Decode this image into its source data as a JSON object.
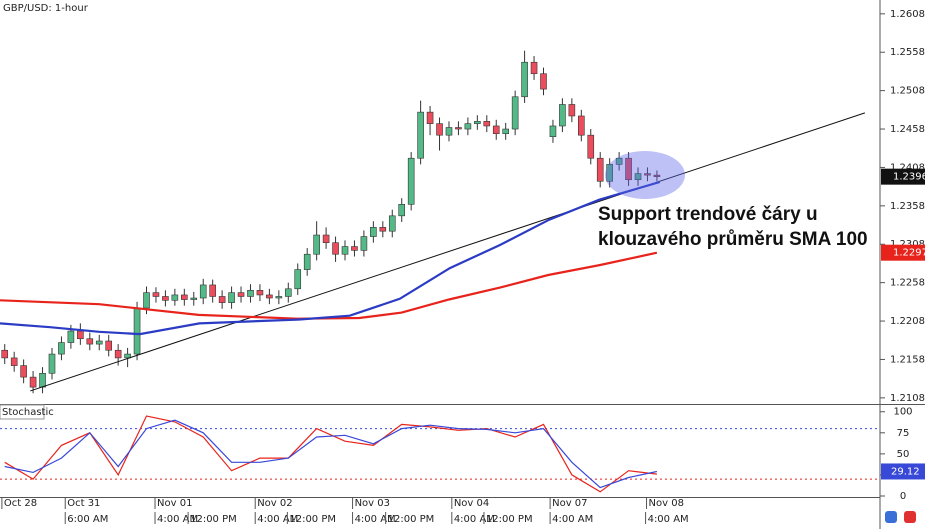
{
  "chart_data": [
    {
      "type": "candlestick",
      "title": "GBP/USD: 1-hour",
      "up_color": "#53b987",
      "down_color": "#eb4d5c",
      "open": [
        1.217,
        1.216,
        1.215,
        1.2135,
        1.2122,
        1.214,
        1.2165,
        1.218,
        1.2195,
        1.2185,
        1.2178,
        1.2182,
        1.217,
        1.216,
        1.2165,
        1.2225,
        1.2245,
        1.224,
        1.2235,
        1.2242,
        1.2236,
        1.2238,
        1.2255,
        1.224,
        1.2232,
        1.2245,
        1.224,
        1.2248,
        1.2242,
        1.2238,
        1.224,
        1.225,
        1.2275,
        1.2295,
        1.232,
        1.231,
        1.2295,
        1.2305,
        1.23,
        1.2318,
        1.233,
        1.2325,
        1.2345,
        1.236,
        1.242,
        1.248,
        1.2465,
        1.245,
        1.246,
        1.2458,
        1.2465,
        1.2468,
        1.2462,
        1.2452,
        1.2458,
        1.25,
        1.2545,
        1.253,
        1.2448,
        1.2462,
        1.249,
        1.2475,
        1.245,
        1.242,
        1.239,
        1.2412,
        1.242,
        1.2392,
        1.24,
        1.2398
      ],
      "high": [
        1.2178,
        1.2168,
        1.2158,
        1.2143,
        1.2148,
        1.2173,
        1.2188,
        1.2203,
        1.2205,
        1.2193,
        1.219,
        1.219,
        1.2178,
        1.2173,
        1.2233,
        1.2253,
        1.2252,
        1.2248,
        1.225,
        1.225,
        1.2246,
        1.2263,
        1.2262,
        1.2248,
        1.2253,
        1.2253,
        1.2256,
        1.2256,
        1.225,
        1.2248,
        1.2258,
        1.2283,
        1.2303,
        1.2338,
        1.233,
        1.2318,
        1.2313,
        1.2313,
        1.2326,
        1.2338,
        1.2338,
        1.2353,
        1.2368,
        1.2428,
        1.2495,
        1.2488,
        1.2473,
        1.2468,
        1.2468,
        1.2473,
        1.2476,
        1.2476,
        1.247,
        1.2466,
        1.2508,
        1.256,
        1.2553,
        1.2538,
        1.247,
        1.2498,
        1.2498,
        1.2483,
        1.2458,
        1.2428,
        1.242,
        1.2428,
        1.2428,
        1.2408,
        1.2408,
        1.2404
      ],
      "low": [
        1.2152,
        1.2142,
        1.2127,
        1.2114,
        1.2114,
        1.2132,
        1.2157,
        1.2172,
        1.2177,
        1.217,
        1.217,
        1.2162,
        1.215,
        1.2148,
        1.2157,
        1.2217,
        1.2232,
        1.2227,
        1.2228,
        1.2228,
        1.2228,
        1.223,
        1.2232,
        1.2224,
        1.2224,
        1.2232,
        1.2232,
        1.2234,
        1.223,
        1.223,
        1.2232,
        1.2242,
        1.2267,
        1.2287,
        1.2302,
        1.2285,
        1.2287,
        1.2292,
        1.2292,
        1.231,
        1.2317,
        1.2317,
        1.2337,
        1.2352,
        1.2412,
        1.245,
        1.243,
        1.2442,
        1.245,
        1.245,
        1.2457,
        1.2454,
        1.2444,
        1.2444,
        1.245,
        1.2492,
        1.2522,
        1.2502,
        1.244,
        1.2454,
        1.2467,
        1.2442,
        1.2412,
        1.2382,
        1.2382,
        1.2404,
        1.2384,
        1.2384,
        1.239,
        1.239
      ],
      "close": [
        1.216,
        1.215,
        1.2135,
        1.2122,
        1.214,
        1.2165,
        1.218,
        1.2195,
        1.2185,
        1.2178,
        1.2182,
        1.217,
        1.216,
        1.2165,
        1.2225,
        1.2245,
        1.224,
        1.2235,
        1.2242,
        1.2236,
        1.2238,
        1.2255,
        1.224,
        1.2232,
        1.2245,
        1.224,
        1.2248,
        1.2242,
        1.2238,
        1.224,
        1.225,
        1.2275,
        1.2295,
        1.232,
        1.231,
        1.2295,
        1.2305,
        1.23,
        1.2318,
        1.233,
        1.2325,
        1.2345,
        1.236,
        1.242,
        1.248,
        1.2465,
        1.245,
        1.246,
        1.2458,
        1.2465,
        1.2468,
        1.2462,
        1.2452,
        1.2458,
        1.25,
        1.2545,
        1.253,
        1.251,
        1.2462,
        1.249,
        1.2475,
        1.245,
        1.242,
        1.239,
        1.2412,
        1.242,
        1.2392,
        1.24,
        1.2398,
        1.2396
      ],
      "series": [
        {
          "color": "#e8231b",
          "x": [
            -0.5,
            10,
            20.5,
            31,
            37.5,
            42,
            47,
            52.5,
            57.5,
            63,
            69
          ],
          "values": [
            1.2235,
            1.223,
            1.2216,
            1.2211,
            1.2212,
            1.2219,
            1.2236,
            1.2252,
            1.2268,
            1.2281,
            1.2297
          ]
        },
        {
          "color": "#2b3bc4",
          "x": [
            -0.5,
            4.8,
            10,
            14.3,
            20.6,
            31.2,
            36.5,
            41.8,
            47.1,
            52.4,
            57.6,
            62.9,
            69.3
          ],
          "values": [
            1.2205,
            1.22,
            1.2194,
            1.2191,
            1.2205,
            1.221,
            1.2215,
            1.2237,
            1.2277,
            1.2307,
            1.234,
            1.2366,
            1.2389
          ]
        }
      ],
      "trendline": {
        "x": [
          2.7,
          91
        ],
        "y": [
          1.2117,
          1.2479
        ]
      },
      "annotation": [
        "Support trendové čáry u",
        "klouzavého průměru SMA 100"
      ],
      "xlim": [
        -0.5,
        92.6
      ],
      "ylim": [
        1.21,
        1.2626
      ],
      "yticks": [
        1.2108,
        1.2158,
        1.2208,
        1.2258,
        1.2308,
        1.2358,
        1.2408,
        1.2458,
        1.2508,
        1.2558,
        1.2608
      ]
    },
    {
      "type": "line",
      "title": "Stochastic",
      "series": [
        {
          "color": "#e8231b",
          "x": [
            0,
            3,
            6,
            9,
            12,
            15,
            18,
            21,
            24,
            27,
            30,
            33,
            36,
            39,
            42,
            45,
            48,
            51,
            54,
            57,
            60,
            63,
            66,
            69
          ],
          "values": [
            40,
            20,
            60,
            75,
            25,
            95,
            88,
            70,
            30,
            45,
            45,
            80,
            65,
            60,
            85,
            82,
            78,
            80,
            70,
            85,
            25,
            5,
            30,
            26
          ]
        },
        {
          "color": "#3849d8",
          "x": [
            0,
            3,
            6,
            9,
            12,
            15,
            18,
            21,
            24,
            27,
            30,
            33,
            36,
            39,
            42,
            45,
            48,
            51,
            54,
            57,
            60,
            63,
            66,
            69
          ],
          "values": [
            35,
            28,
            45,
            75,
            35,
            80,
            90,
            75,
            40,
            40,
            45,
            70,
            72,
            62,
            80,
            84,
            80,
            79,
            75,
            80,
            40,
            10,
            22,
            29.12
          ]
        }
      ],
      "levels": [
        20,
        80
      ],
      "xlim": [
        -0.5,
        92.6
      ],
      "ylim": [
        0,
        108
      ],
      "yticks": [
        0,
        25,
        50,
        75,
        100
      ],
      "xticks": [
        {
          "value": -0.3,
          "label": "Oct 28"
        },
        {
          "value": 6.4,
          "label": "Oct 31"
        },
        {
          "value": 15.9,
          "label": "Nov 01"
        },
        {
          "value": 26.5,
          "label": "Nov 02"
        },
        {
          "value": 36.8,
          "label": "Nov 03"
        },
        {
          "value": 47.3,
          "label": "Nov 04"
        },
        {
          "value": 57.7,
          "label": "Nov 07"
        },
        {
          "value": 67.9,
          "label": "Nov 08"
        }
      ],
      "xticks_time": [
        {
          "value": 6.4,
          "label": "6:00 AM"
        },
        {
          "value": 15.9,
          "label": "4:00 AM"
        },
        {
          "value": 19.4,
          "label": "12:00 PM"
        },
        {
          "value": 26.5,
          "label": "4:00 AM"
        },
        {
          "value": 29.9,
          "label": "12:00 PM"
        },
        {
          "value": 36.8,
          "label": "4:00 AM"
        },
        {
          "value": 40.3,
          "label": "12:00 PM"
        },
        {
          "value": 47.3,
          "label": "4:00 AM"
        },
        {
          "value": 50.7,
          "label": "12:00 PM"
        },
        {
          "value": 57.7,
          "label": "4:00 AM"
        },
        {
          "value": 67.8,
          "label": "4:00 AM"
        }
      ]
    }
  ]
}
